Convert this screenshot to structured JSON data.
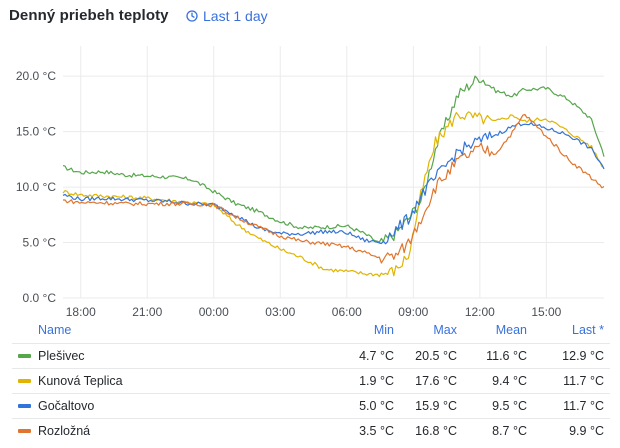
{
  "panel": {
    "title": "Denný priebeh teploty",
    "time_range": "Last 1 day"
  },
  "legend": {
    "headers": {
      "name": "Name",
      "min": "Min",
      "max": "Max",
      "mean": "Mean",
      "last": "Last *"
    },
    "rows": [
      {
        "name": "Plešivec",
        "min": "4.7 °C",
        "max": "20.5 °C",
        "mean": "11.6 °C",
        "last": "12.9 °C",
        "color": "#56a64b"
      },
      {
        "name": "Kunová Teplica",
        "min": "1.9 °C",
        "max": "17.6 °C",
        "mean": "9.4 °C",
        "last": "11.7 °C",
        "color": "#e0b400"
      },
      {
        "name": "Gočaltovo",
        "min": "5.0 °C",
        "max": "15.9 °C",
        "mean": "9.5 °C",
        "last": "11.7 °C",
        "color": "#3274d9"
      },
      {
        "name": "Rozložná",
        "min": "3.5 °C",
        "max": "16.8 °C",
        "mean": "8.7 °C",
        "last": "9.9 °C",
        "color": "#e0752d"
      }
    ]
  },
  "chart_data": {
    "type": "line",
    "xlabel": "",
    "ylabel": "",
    "grid": true,
    "legend": "bottom",
    "x_ticks": [
      "18:00",
      "21:00",
      "00:00",
      "03:00",
      "06:00",
      "09:00",
      "12:00",
      "15:00"
    ],
    "y_ticks": [
      "0.0 °C",
      "5.0 °C",
      "10.0 °C",
      "15.0 °C",
      "20.0 °C"
    ],
    "ylim": [
      0,
      22
    ],
    "xlim_hours": [
      17.2,
      41.6
    ],
    "x_hours": [
      17.2,
      18,
      19,
      20,
      21,
      22,
      23,
      24,
      25,
      26,
      27,
      28,
      29,
      30,
      30.8,
      31.5,
      32.2,
      32.8,
      33.4,
      34,
      35,
      36,
      36.7,
      37.5,
      38,
      39,
      40,
      41,
      41.6
    ],
    "series": [
      {
        "name": "Plešivec",
        "values": [
          11.8,
          11.3,
          11.4,
          11.1,
          11.0,
          10.9,
          10.7,
          9.6,
          8.5,
          7.8,
          6.9,
          6.3,
          6.4,
          6.5,
          5.8,
          4.9,
          5.8,
          7.2,
          9.0,
          13.5,
          18.3,
          20.0,
          18.7,
          18.2,
          18.8,
          18.9,
          17.9,
          16.2,
          12.9
        ]
      },
      {
        "name": "Kunová Teplica",
        "values": [
          9.6,
          9.3,
          9.2,
          9.1,
          9.0,
          8.8,
          8.6,
          8.4,
          6.7,
          5.4,
          4.4,
          3.6,
          2.6,
          2.4,
          2.2,
          2.1,
          2.5,
          3.9,
          9.8,
          14.0,
          16.6,
          16.2,
          15.9,
          16.5,
          15.9,
          16.2,
          15.0,
          13.7,
          11.7
        ]
      },
      {
        "name": "Gočaltovo",
        "values": [
          9.3,
          8.9,
          9.0,
          8.9,
          8.8,
          8.7,
          8.5,
          8.4,
          7.5,
          6.3,
          5.8,
          5.8,
          6.0,
          5.9,
          5.2,
          5.0,
          6.1,
          7.2,
          9.4,
          10.8,
          13.2,
          14.2,
          14.7,
          15.5,
          15.8,
          15.3,
          14.7,
          13.5,
          11.7
        ]
      },
      {
        "name": "Rozložná",
        "values": [
          8.8,
          8.6,
          8.6,
          8.5,
          8.5,
          8.5,
          8.5,
          8.4,
          7.3,
          6.4,
          5.6,
          5.1,
          4.9,
          4.6,
          4.1,
          3.6,
          3.8,
          5.0,
          7.4,
          10.0,
          12.3,
          13.5,
          13.0,
          15.0,
          16.6,
          14.6,
          12.5,
          10.9,
          9.9
        ]
      }
    ]
  }
}
